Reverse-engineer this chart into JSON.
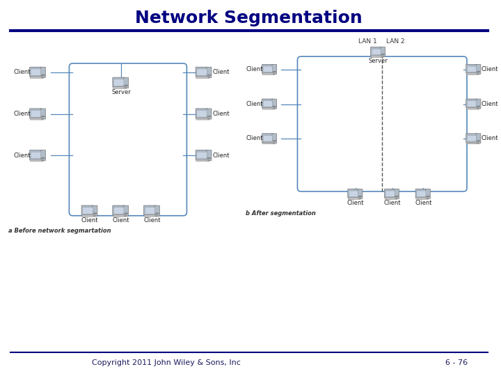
{
  "title": "Network Segmentation",
  "title_color": "#000080",
  "title_fontsize": 18,
  "footer_left": "Copyright 2011 John Wiley & Sons, Inc",
  "footer_right": "6 - 76",
  "footer_fontsize": 8,
  "footer_color": "#1a1a5e",
  "line_color": "#000080",
  "bg_color": "#ffffff",
  "box_color": "#5588bb",
  "label_a": "a Before network segmartation",
  "label_b": "b After segmentation",
  "lan1_label": "LAN 1",
  "lan2_label": "LAN 2",
  "server_label": "Server",
  "client_label": "Client",
  "node_color": "#aab8c8",
  "screen_color": "#c8d4e4",
  "tower_color": "#b0bcc8"
}
